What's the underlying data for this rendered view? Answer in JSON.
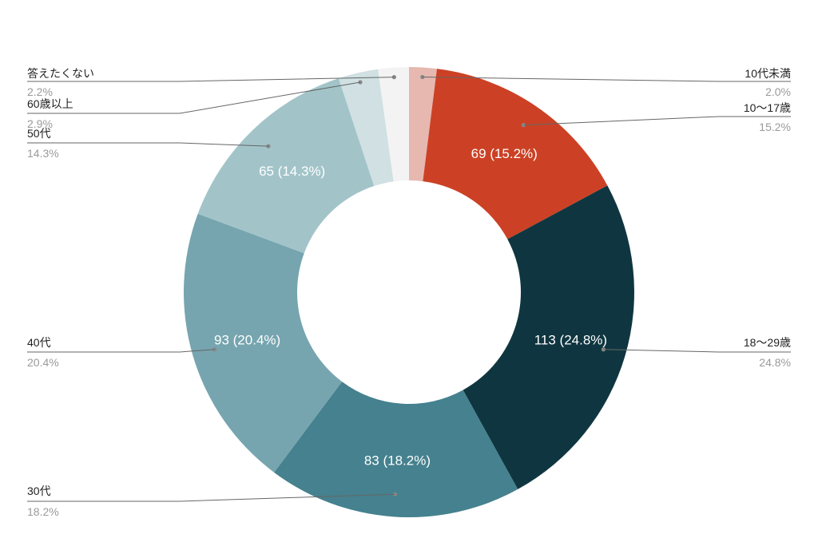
{
  "chart_data": {
    "type": "pie",
    "donut": true,
    "legend": "leader-lines",
    "slices": [
      {
        "name": "10代未満",
        "value": 9,
        "percent": "2.0%",
        "color": "#e6b8b0"
      },
      {
        "name": "10〜17歳",
        "value": 69,
        "percent": "15.2%",
        "color": "#cc4125"
      },
      {
        "name": "18〜29歳",
        "value": 113,
        "percent": "24.8%",
        "color": "#0f3640"
      },
      {
        "name": "30代",
        "value": 83,
        "percent": "18.2%",
        "color": "#45818e"
      },
      {
        "name": "40代",
        "value": 93,
        "percent": "20.4%",
        "color": "#76a5af"
      },
      {
        "name": "50代",
        "value": 65,
        "percent": "14.3%",
        "color": "#a2c4c9"
      },
      {
        "name": "60歳以上",
        "value": 13,
        "percent": "2.9%",
        "color": "#d0e0e3"
      },
      {
        "name": "答えたくない",
        "value": 10,
        "percent": "2.2%",
        "color": "#f3f3f3"
      }
    ],
    "slice_labels": [
      "",
      "69 (15.2%)",
      "113 (24.8%)",
      "83 (18.2%)",
      "93 (20.4%)",
      "65 (14.3%)",
      "",
      ""
    ]
  }
}
